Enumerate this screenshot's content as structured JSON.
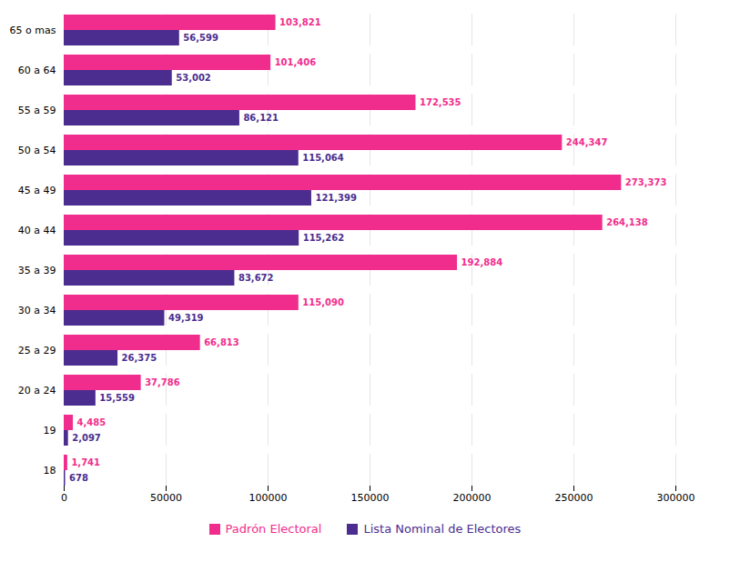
{
  "chart_data": {
    "type": "bar",
    "orientation": "horizontal",
    "categories": [
      "18",
      "19",
      "20 a 24",
      "25 a 29",
      "30 a 34",
      "35 a 39",
      "40 a 44",
      "45 a 49",
      "50 a 54",
      "55 a 59",
      "60 a 64",
      "65 o mas"
    ],
    "series": [
      {
        "name": "Padrón Electoral",
        "color": "#f02d8c",
        "values": [
          1741,
          4485,
          37786,
          66813,
          115090,
          192884,
          264138,
          273373,
          244347,
          172535,
          101406,
          103821
        ],
        "value_labels": [
          "1,741",
          "4,485",
          "37,786",
          "66,813",
          "115,090",
          "192,884",
          "264,138",
          "273,373",
          "244,347",
          "172,535",
          "101,406",
          "103,821"
        ]
      },
      {
        "name": "Lista Nominal de Electores",
        "color": "#4b2d8f",
        "values": [
          678,
          2097,
          15559,
          26375,
          49319,
          83672,
          115262,
          121399,
          115064,
          86121,
          53002,
          56599
        ],
        "value_labels": [
          "678",
          "2,097",
          "15,559",
          "26,375",
          "49,319",
          "83,672",
          "115,262",
          "121,399",
          "115,064",
          "86,121",
          "53,002",
          "56,599"
        ]
      }
    ],
    "xlim": [
      0,
      300000
    ],
    "xticks": [
      0,
      50000,
      100000,
      150000,
      200000,
      250000,
      300000
    ],
    "grid": true,
    "data_labels": true,
    "legend": "bottom"
  }
}
